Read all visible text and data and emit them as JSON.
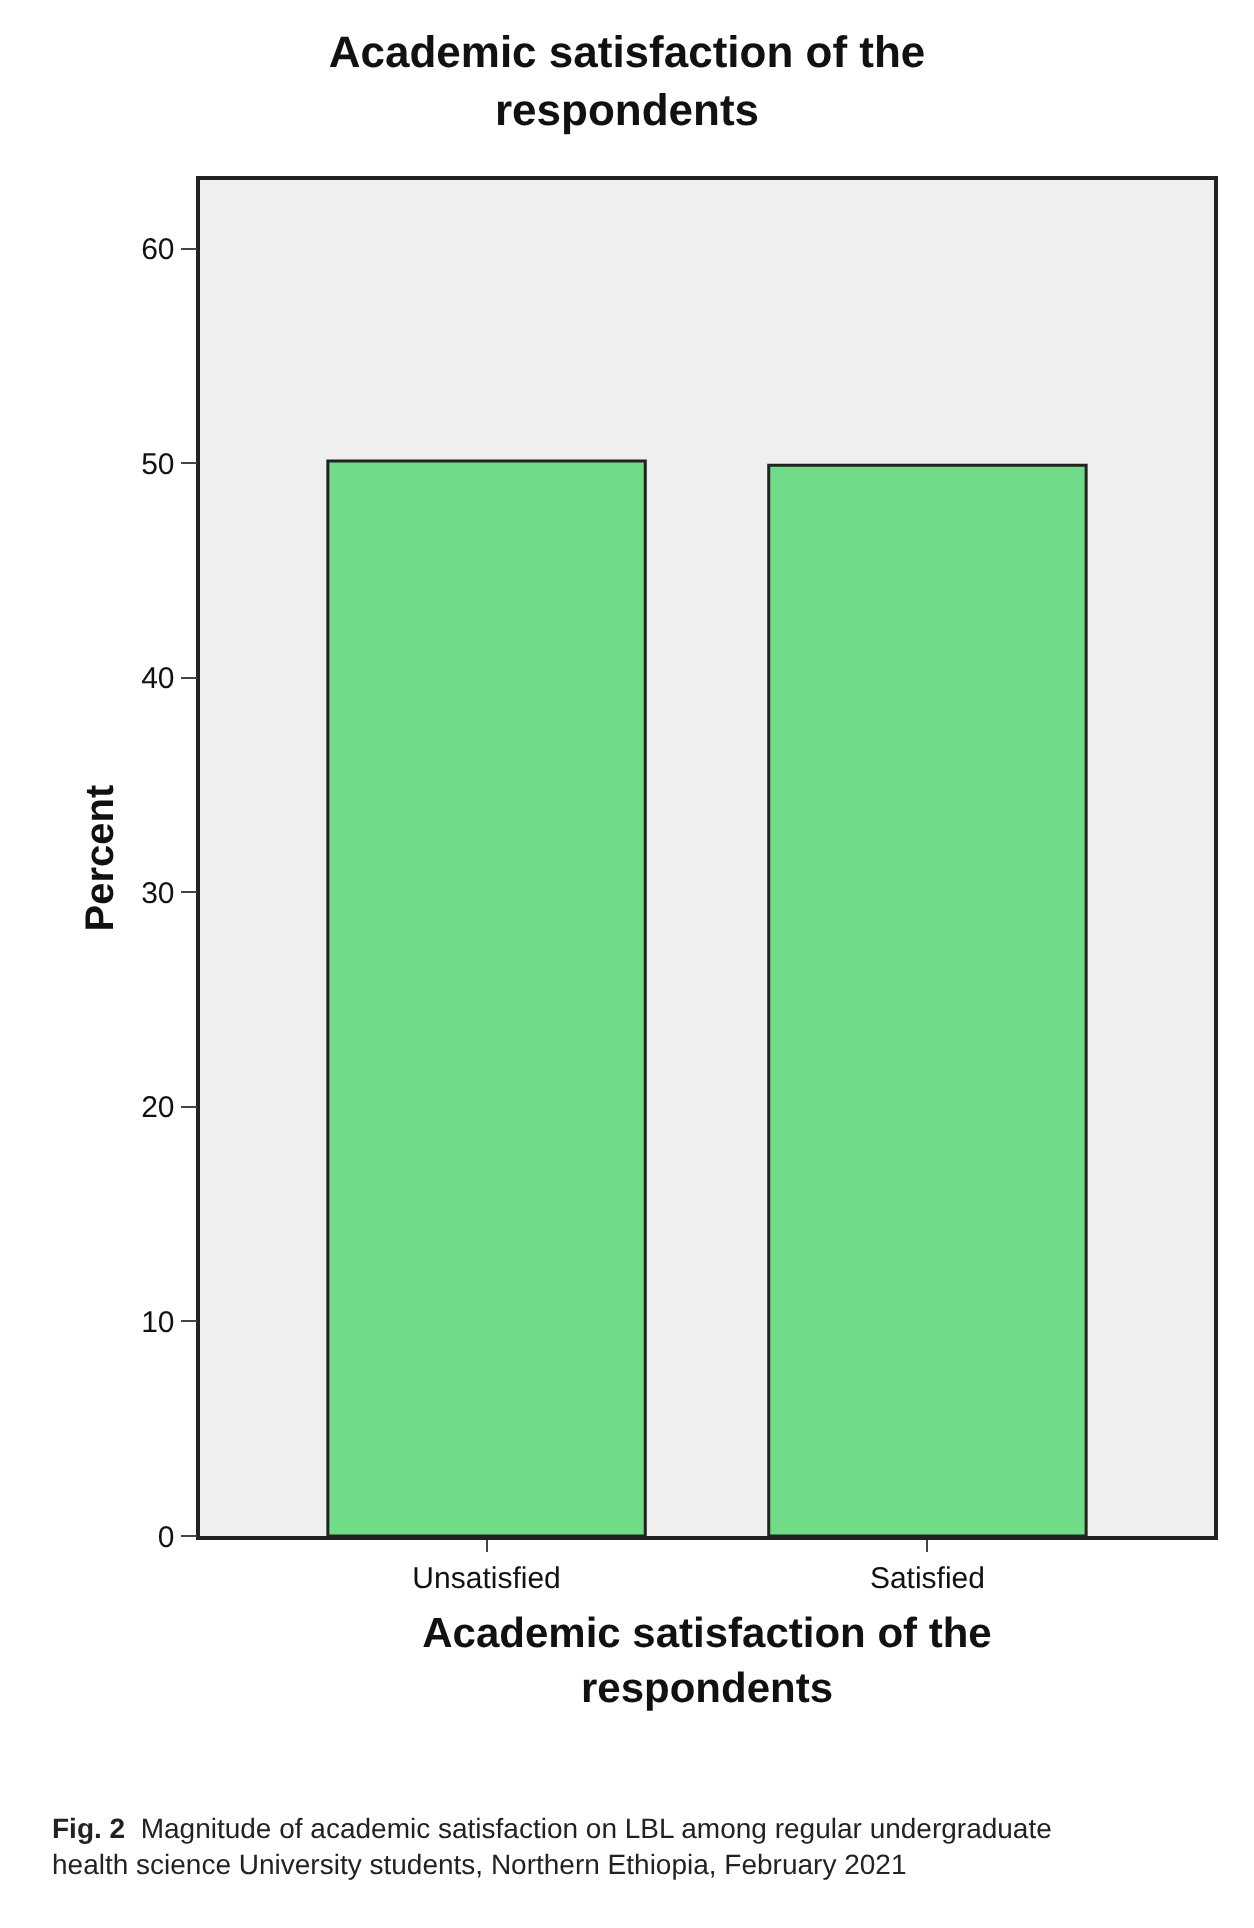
{
  "chart_data": {
    "type": "bar",
    "title": "Academic satisfaction of the respondents",
    "xlabel": "Academic satisfaction of the respondents",
    "ylabel": "Percent",
    "categories": [
      "Unsatisfied",
      "Satisfied"
    ],
    "values": [
      50.1,
      49.9
    ],
    "color": "#70dc87",
    "ylim": [
      0,
      63.2
    ],
    "yticks": [
      0,
      10,
      20,
      30,
      40,
      50,
      60
    ],
    "grid": false,
    "legend": false,
    "annotations": [
      "Fig. 2",
      "Magnitude of academic satisfaction on LBL among regular undergraduate health science University students, Northern Ethiopia, February 2021"
    ]
  }
}
